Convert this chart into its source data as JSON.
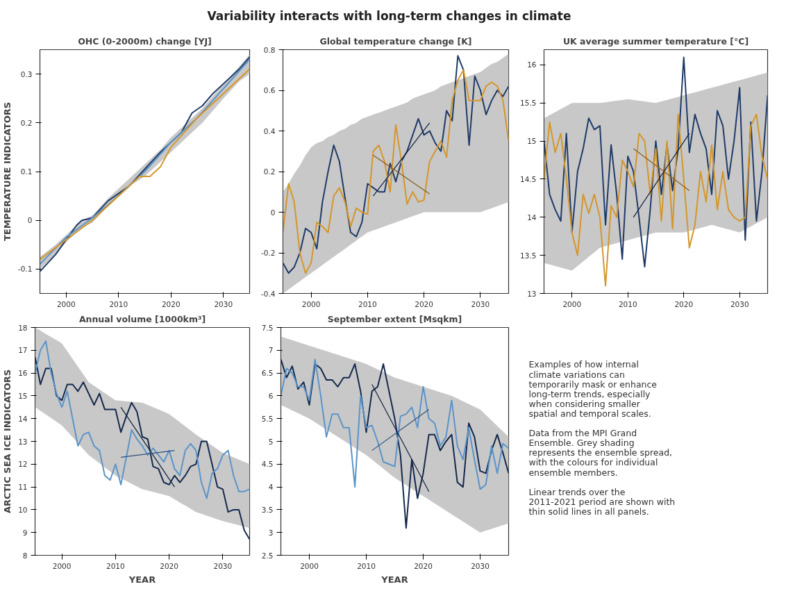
{
  "chart_data": [
    {
      "type": "other",
      "title": "Variability interacts with long-term changes in climate"
    },
    {
      "type": "line",
      "title": "OHC (0-2000m) change [YJ]",
      "ylabel": "TEMPERATURE INDICATORS",
      "xlim": [
        1995,
        2035
      ],
      "xticks": [
        2000,
        2010,
        2020,
        2030
      ],
      "ylim": [
        -0.15,
        0.35
      ],
      "yticks": [
        -0.1,
        0,
        0.1,
        0.2,
        0.3
      ],
      "series": [
        {
          "color": "#1f3a68",
          "x": [
            1995,
            1998,
            2000,
            2002,
            2003,
            2005,
            2008,
            2010,
            2012,
            2015,
            2018,
            2020,
            2022,
            2024,
            2026,
            2028,
            2030,
            2033,
            2035
          ],
          "values": [
            -0.105,
            -0.07,
            -0.04,
            -0.01,
            0.0,
            0.005,
            0.04,
            0.055,
            0.07,
            0.105,
            0.14,
            0.16,
            0.18,
            0.22,
            0.235,
            0.26,
            0.28,
            0.31,
            0.335
          ],
          "lower": [
            -0.1,
            -0.07,
            -0.045,
            -0.025,
            -0.015,
            -0.005,
            0.03,
            0.05,
            0.07,
            0.09,
            0.12,
            0.14,
            0.16,
            0.18,
            0.2,
            0.225,
            0.25,
            0.285,
            0.3
          ],
          "upper": [
            -0.075,
            -0.05,
            -0.03,
            -0.01,
            0.0,
            0.01,
            0.045,
            0.065,
            0.085,
            0.115,
            0.145,
            0.17,
            0.19,
            0.21,
            0.23,
            0.255,
            0.28,
            0.315,
            0.34
          ]
        },
        {
          "color": "#5b93c9",
          "x": [
            1995,
            2000,
            2005,
            2010,
            2015,
            2020,
            2025,
            2030,
            2035
          ],
          "values": [
            -0.09,
            -0.035,
            0.005,
            0.05,
            0.1,
            0.16,
            0.21,
            0.27,
            0.33
          ]
        },
        {
          "color": "#d4962a",
          "x": [
            1995,
            2000,
            2005,
            2010,
            2014,
            2016,
            2018,
            2020,
            2025,
            2030,
            2035
          ],
          "values": [
            -0.08,
            -0.04,
            0.0,
            0.05,
            0.09,
            0.09,
            0.11,
            0.15,
            0.21,
            0.26,
            0.31
          ]
        }
      ]
    },
    {
      "type": "line",
      "title": "Global temperature change [K]",
      "xlim": [
        1995,
        2035
      ],
      "xticks": [
        2000,
        2010,
        2020,
        2030
      ],
      "ylim": [
        -0.4,
        0.8
      ],
      "yticks": [
        -0.4,
        -0.2,
        0,
        0.2,
        0.4,
        0.6,
        0.8
      ],
      "x": [
        1995,
        1996,
        1997,
        1998,
        1999,
        2000,
        2001,
        2002,
        2003,
        2004,
        2005,
        2006,
        2007,
        2008,
        2009,
        2010,
        2011,
        2012,
        2013,
        2014,
        2015,
        2016,
        2017,
        2018,
        2019,
        2020,
        2021,
        2022,
        2023,
        2024,
        2025,
        2026,
        2027,
        2028,
        2029,
        2030,
        2031,
        2032,
        2033,
        2034,
        2035
      ],
      "series": [
        {
          "color": "#1f3a68",
          "values": [
            -0.25,
            -0.3,
            -0.27,
            -0.2,
            -0.08,
            -0.1,
            -0.18,
            0.05,
            0.2,
            0.33,
            0.25,
            0.07,
            -0.1,
            -0.12,
            -0.05,
            0.14,
            0.12,
            0.1,
            0.1,
            0.24,
            0.15,
            0.25,
            0.3,
            0.38,
            0.46,
            0.38,
            0.4,
            0.34,
            0.3,
            0.5,
            0.45,
            0.77,
            0.7,
            0.33,
            0.67,
            0.6,
            0.48,
            0.55,
            0.6,
            0.57,
            0.62
          ],
          "lower": [
            -0.4,
            -0.38,
            -0.36,
            -0.34,
            -0.32,
            -0.3,
            -0.28,
            -0.26,
            -0.24,
            -0.22,
            -0.2,
            -0.18,
            -0.16,
            -0.14,
            -0.12,
            -0.1,
            -0.09,
            -0.08,
            -0.07,
            -0.06,
            -0.05,
            -0.04,
            -0.03,
            -0.02,
            -0.01,
            0.0,
            0.0,
            0.0,
            0.0,
            0.0,
            0.0,
            0.0,
            0.0,
            0.0,
            0.0,
            0.0,
            0.01,
            0.02,
            0.03,
            0.04,
            0.05
          ],
          "upper": [
            0.1,
            0.14,
            0.19,
            0.23,
            0.28,
            0.32,
            0.34,
            0.35,
            0.37,
            0.38,
            0.4,
            0.41,
            0.43,
            0.44,
            0.46,
            0.47,
            0.48,
            0.49,
            0.5,
            0.51,
            0.52,
            0.53,
            0.54,
            0.56,
            0.57,
            0.58,
            0.59,
            0.6,
            0.62,
            0.63,
            0.64,
            0.65,
            0.66,
            0.67,
            0.68,
            0.69,
            0.71,
            0.73,
            0.74,
            0.76,
            0.78
          ]
        },
        {
          "color": "#d4962a",
          "values": [
            -0.1,
            0.14,
            0.05,
            -0.2,
            -0.3,
            -0.25,
            -0.05,
            -0.07,
            -0.1,
            0.08,
            0.12,
            0.05,
            -0.07,
            0.02,
            0.0,
            -0.01,
            0.3,
            0.33,
            0.25,
            0.1,
            0.43,
            0.25,
            0.04,
            0.1,
            0.05,
            0.06,
            0.25,
            0.3,
            0.35,
            0.27,
            0.55,
            0.65,
            0.7,
            0.55,
            0.55,
            0.55,
            0.62,
            0.64,
            0.62,
            0.55,
            0.35
          ]
        },
        {
          "color": "#0d1f3c",
          "x": [
            2011,
            2021
          ],
          "values": [
            0.08,
            0.44
          ]
        },
        {
          "color": "#8a5a1a",
          "x": [
            2011,
            2021
          ],
          "values": [
            0.28,
            0.09
          ]
        }
      ]
    },
    {
      "type": "line",
      "title": "UK average summer temperature [°C]",
      "xlim": [
        1995,
        2035
      ],
      "xticks": [
        2000,
        2010,
        2020,
        2030
      ],
      "ylim": [
        13,
        16.2
      ],
      "yticks": [
        13,
        13.5,
        14,
        14.5,
        15,
        15.5,
        16
      ],
      "x": [
        1995,
        1996,
        1997,
        1998,
        1999,
        2000,
        2001,
        2002,
        2003,
        2004,
        2005,
        2006,
        2007,
        2008,
        2009,
        2010,
        2011,
        2012,
        2013,
        2014,
        2015,
        2016,
        2017,
        2018,
        2019,
        2020,
        2021,
        2022,
        2023,
        2024,
        2025,
        2026,
        2027,
        2028,
        2029,
        2030,
        2031,
        2032,
        2033,
        2034,
        2035
      ],
      "series": [
        {
          "color": "#1f3a68",
          "values": [
            15.0,
            14.3,
            14.1,
            13.95,
            15.1,
            13.8,
            14.6,
            14.9,
            15.3,
            15.15,
            15.2,
            13.9,
            14.95,
            14.3,
            13.45,
            14.8,
            14.6,
            14.0,
            13.35,
            14.1,
            15.0,
            14.3,
            14.95,
            14.35,
            14.9,
            16.1,
            14.85,
            15.35,
            15.1,
            14.9,
            14.3,
            15.4,
            15.2,
            14.5,
            15.0,
            15.7,
            13.7,
            15.25,
            13.95,
            14.6,
            15.6
          ],
          "lower": [
            13.4,
            13.38,
            13.36,
            13.34,
            13.32,
            13.3,
            13.36,
            13.42,
            13.48,
            13.54,
            13.6,
            13.62,
            13.64,
            13.66,
            13.68,
            13.7,
            13.72,
            13.74,
            13.76,
            13.78,
            13.8,
            13.8,
            13.8,
            13.8,
            13.8,
            13.8,
            13.82,
            13.84,
            13.86,
            13.88,
            13.9,
            13.88,
            13.86,
            13.84,
            13.82,
            13.8,
            13.84,
            13.88,
            13.92,
            13.96,
            14.0
          ],
          "upper": [
            15.3,
            15.34,
            15.38,
            15.42,
            15.46,
            15.5,
            15.5,
            15.5,
            15.5,
            15.5,
            15.5,
            15.51,
            15.52,
            15.53,
            15.54,
            15.55,
            15.54,
            15.53,
            15.52,
            15.51,
            15.5,
            15.52,
            15.54,
            15.56,
            15.58,
            15.6,
            15.62,
            15.64,
            15.66,
            15.68,
            15.7,
            15.72,
            15.74,
            15.76,
            15.78,
            15.8,
            15.82,
            15.84,
            15.86,
            15.88,
            15.9
          ]
        },
        {
          "color": "#d4962a",
          "values": [
            14.5,
            15.25,
            14.85,
            15.1,
            14.5,
            13.8,
            13.5,
            14.3,
            14.05,
            14.3,
            14.0,
            13.1,
            14.15,
            14.0,
            14.75,
            14.6,
            14.4,
            15.1,
            15.0,
            14.3,
            14.9,
            13.95,
            15.0,
            13.85,
            15.35,
            14.5,
            13.6,
            13.9,
            14.6,
            14.2,
            14.95,
            14.1,
            14.6,
            14.1,
            14.0,
            13.95,
            14.0,
            15.2,
            15.35,
            14.8,
            14.5
          ]
        },
        {
          "color": "#0d1f3c",
          "x": [
            2011,
            2021
          ],
          "values": [
            14.0,
            15.1
          ]
        },
        {
          "color": "#8a5a1a",
          "x": [
            2011,
            2021
          ],
          "values": [
            14.9,
            14.35
          ]
        }
      ]
    },
    {
      "type": "line",
      "title": "Annual volume [1000km³]",
      "ylabel": "ARCTIC SEA ICE INDICATORS",
      "xlabel": "YEAR",
      "xlim": [
        1995,
        2035
      ],
      "xticks": [
        2000,
        2010,
        2020,
        2030
      ],
      "ylim": [
        8,
        18
      ],
      "yticks": [
        8,
        9,
        10,
        11,
        12,
        13,
        14,
        15,
        16,
        17,
        18
      ],
      "x": [
        1995,
        1996,
        1997,
        1998,
        1999,
        2000,
        2001,
        2002,
        2003,
        2004,
        2005,
        2006,
        2007,
        2008,
        2009,
        2010,
        2011,
        2012,
        2013,
        2014,
        2015,
        2016,
        2017,
        2018,
        2019,
        2020,
        2021,
        2022,
        2023,
        2024,
        2025,
        2026,
        2027,
        2028,
        2029,
        2030,
        2031,
        2032,
        2033,
        2034,
        2035
      ],
      "series": [
        {
          "color": "#14284d",
          "values": [
            16.7,
            15.5,
            16.2,
            16.2,
            15.0,
            14.8,
            15.5,
            15.5,
            15.2,
            15.6,
            15.1,
            14.6,
            15.1,
            14.4,
            14.4,
            14.4,
            13.4,
            14.1,
            14.7,
            14.3,
            13.2,
            13.1,
            11.9,
            11.8,
            11.2,
            11.1,
            11.5,
            11.2,
            11.5,
            11.9,
            12.0,
            13.0,
            13.0,
            12.0,
            11.0,
            10.9,
            9.9,
            10.0,
            10.0,
            9.1,
            8.7
          ],
          "lower": [
            14.5,
            14.34,
            14.18,
            14.02,
            13.86,
            13.7,
            13.44,
            13.18,
            12.92,
            12.66,
            12.4,
            12.22,
            12.04,
            11.86,
            11.68,
            11.5,
            11.38,
            11.26,
            11.14,
            11.02,
            10.9,
            10.84,
            10.78,
            10.72,
            10.66,
            10.6,
            10.46,
            10.32,
            10.18,
            10.04,
            9.9,
            9.82,
            9.74,
            9.66,
            9.58,
            9.5,
            9.44,
            9.38,
            9.32,
            9.26,
            9.2
          ],
          "upper": [
            18,
            17.86,
            17.72,
            17.58,
            17.44,
            17.3,
            16.96,
            16.62,
            16.28,
            15.94,
            15.6,
            15.44,
            15.28,
            15.12,
            14.96,
            14.8,
            14.78,
            14.76,
            14.74,
            14.72,
            14.7,
            14.6,
            14.5,
            14.4,
            14.3,
            14.2,
            14.02,
            13.84,
            13.66,
            13.48,
            13.3,
            13.14,
            12.98,
            12.82,
            12.66,
            12.5,
            12.4,
            12.3,
            12.2,
            12.1,
            12.0
          ]
        },
        {
          "color": "#5b93c9",
          "values": [
            16.0,
            17.0,
            17.4,
            16.0,
            15.1,
            14.5,
            15.2,
            14.0,
            12.8,
            13.3,
            13.4,
            12.8,
            12.6,
            11.5,
            11.3,
            12.0,
            11.1,
            12.3,
            13.5,
            13.1,
            12.8,
            12.4,
            12.7,
            12.4,
            12.1,
            12.6,
            11.8,
            11.5,
            12.6,
            12.9,
            12.6,
            11.2,
            10.5,
            11.6,
            11.8,
            12.4,
            12.6,
            11.5,
            10.8,
            10.8,
            10.9
          ]
        },
        {
          "color": "#0d1f3c",
          "x": [
            2011,
            2021
          ],
          "values": [
            14.5,
            11.0
          ]
        },
        {
          "color": "#2d4f7a",
          "x": [
            2011,
            2021
          ],
          "values": [
            12.3,
            12.6
          ]
        }
      ]
    },
    {
      "type": "line",
      "title": "September extent [Msqkm]",
      "xlabel": "YEAR",
      "xlim": [
        1995,
        2035
      ],
      "xticks": [
        2000,
        2010,
        2020,
        2030
      ],
      "ylim": [
        2.5,
        7.5
      ],
      "yticks": [
        2.5,
        3,
        3.5,
        4,
        4.5,
        5,
        5.5,
        6,
        6.5,
        7,
        7.5
      ],
      "x": [
        1995,
        1996,
        1997,
        1998,
        1999,
        2000,
        2001,
        2002,
        2003,
        2004,
        2005,
        2006,
        2007,
        2008,
        2009,
        2010,
        2011,
        2012,
        2013,
        2014,
        2015,
        2016,
        2017,
        2018,
        2019,
        2020,
        2021,
        2022,
        2023,
        2024,
        2025,
        2026,
        2027,
        2028,
        2029,
        2030,
        2031,
        2032,
        2033,
        2034,
        2035
      ],
      "series": [
        {
          "color": "#14284d",
          "values": [
            6.8,
            6.4,
            6.65,
            6.15,
            6.3,
            5.8,
            6.7,
            6.6,
            6.35,
            6.35,
            6.2,
            6.4,
            6.4,
            6.7,
            6.1,
            5.2,
            6.1,
            6.2,
            6.7,
            6.1,
            5.5,
            4.7,
            3.1,
            4.6,
            3.75,
            4.3,
            5.15,
            5.15,
            4.8,
            5.0,
            5.15,
            4.1,
            4.0,
            5.4,
            5.1,
            4.35,
            4.3,
            4.8,
            5.15,
            4.75,
            4.3
          ],
          "lower": [
            5.8,
            5.74,
            5.68,
            5.62,
            5.56,
            5.5,
            5.42,
            5.34,
            5.26,
            5.18,
            5.1,
            5.02,
            4.94,
            4.86,
            4.78,
            4.7,
            4.6,
            4.5,
            4.4,
            4.3,
            4.2,
            4.12,
            4.04,
            3.96,
            3.88,
            3.8,
            3.72,
            3.64,
            3.56,
            3.48,
            3.4,
            3.32,
            3.24,
            3.16,
            3.08,
            3.0,
            3.04,
            3.08,
            3.12,
            3.16,
            3.2
          ],
          "upper": [
            7.3,
            7.26,
            7.22,
            7.18,
            7.14,
            7.1,
            7.06,
            7.02,
            6.98,
            6.94,
            6.9,
            6.86,
            6.82,
            6.78,
            6.74,
            6.7,
            6.64,
            6.58,
            6.52,
            6.46,
            6.4,
            6.36,
            6.32,
            6.28,
            6.24,
            6.2,
            6.16,
            6.12,
            6.08,
            6.04,
            6.0,
            5.94,
            5.88,
            5.82,
            5.76,
            5.7,
            5.58,
            5.46,
            5.34,
            5.22,
            5.1
          ]
        },
        {
          "color": "#5b93c9",
          "values": [
            6.0,
            6.6,
            6.5,
            6.2,
            6.2,
            5.9,
            6.8,
            6.0,
            5.1,
            5.6,
            5.6,
            5.3,
            5.3,
            4.0,
            6.0,
            5.3,
            5.35,
            5.0,
            4.55,
            4.5,
            4.45,
            5.55,
            5.6,
            5.75,
            5.3,
            6.2,
            5.5,
            5.4,
            4.9,
            5.1,
            5.9,
            4.9,
            4.6,
            5.3,
            4.6,
            3.95,
            4.05,
            4.9,
            4.3,
            4.95,
            4.85
          ]
        },
        {
          "color": "#0d1f3c",
          "x": [
            2011,
            2021
          ],
          "values": [
            6.25,
            3.9
          ]
        },
        {
          "color": "#2d4f7a",
          "x": [
            2011,
            2021
          ],
          "values": [
            4.8,
            5.7
          ]
        }
      ]
    },
    {
      "type": "other",
      "annotations": [
        "Examples of how internal climate variations can temporarily mask or enhance long-term trends, especially when considering smaller spatial and temporal scales.",
        "Data from the MPI Grand Ensemble. Grey shading represents the ensemble spread, with the colours for individual ensemble members.",
        "Linear trends over the 2011-2021 period are shown with thin solid lines in all panels."
      ]
    }
  ]
}
